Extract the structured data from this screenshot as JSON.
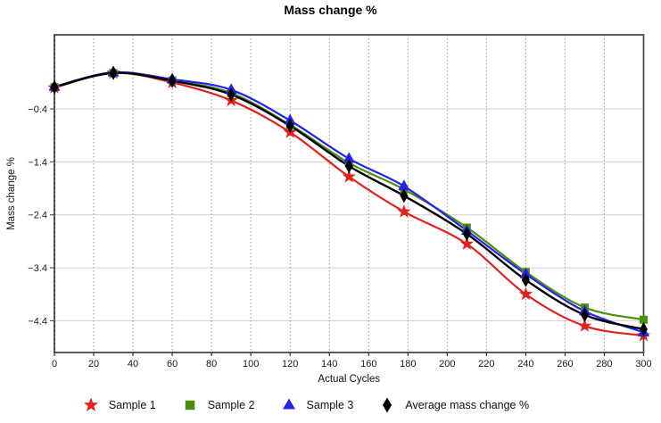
{
  "chart_data": {
    "type": "line",
    "title": "Mass change %",
    "xlabel": "Actual Cycles",
    "ylabel": "Mass change %",
    "x": [
      0,
      30,
      60,
      90,
      120,
      150,
      178,
      210,
      240,
      270,
      300
    ],
    "series": [
      {
        "name": "Sample 1",
        "marker": "star",
        "color": "#e2201c",
        "values": [
          0.0,
          0.28,
          0.1,
          -0.24,
          -0.84,
          -1.68,
          -2.34,
          -2.95,
          -3.9,
          -4.5,
          -4.68
        ]
      },
      {
        "name": "Sample 2",
        "marker": "square",
        "color": "#4d8f0c",
        "values": [
          0.01,
          0.28,
          0.14,
          -0.1,
          -0.7,
          -1.42,
          -1.92,
          -2.64,
          -3.48,
          -4.15,
          -4.38
        ]
      },
      {
        "name": "Sample 3",
        "marker": "triangle",
        "color": "#2323ee",
        "values": [
          0.02,
          0.29,
          0.16,
          -0.04,
          -0.62,
          -1.34,
          -1.86,
          -2.7,
          -3.52,
          -4.22,
          -4.62
        ]
      },
      {
        "name": "Average mass change %",
        "marker": "diamond",
        "color": "#000000",
        "values": [
          0.01,
          0.28,
          0.13,
          -0.13,
          -0.72,
          -1.48,
          -2.04,
          -2.76,
          -3.63,
          -4.29,
          -4.56
        ]
      }
    ],
    "xlim": [
      0,
      300
    ],
    "ylim": [
      -5.0,
      1.0
    ],
    "x_ticks": [
      0,
      20,
      40,
      60,
      80,
      100,
      120,
      140,
      160,
      180,
      200,
      220,
      240,
      260,
      280,
      300
    ],
    "y_ticks": [
      -0.4,
      -1.4,
      -2.4,
      -3.4,
      -4.4
    ],
    "grid": {
      "vertical": "dotted",
      "horizontal": "solid"
    },
    "legend_position": "bottom",
    "colors": {
      "plot_background": "#ffffff",
      "plot_border": "#4a4a4a",
      "grid_vertical": "#999999",
      "grid_horizontal": "#cfcfcf",
      "tick_label": "#1a1a1a"
    }
  }
}
